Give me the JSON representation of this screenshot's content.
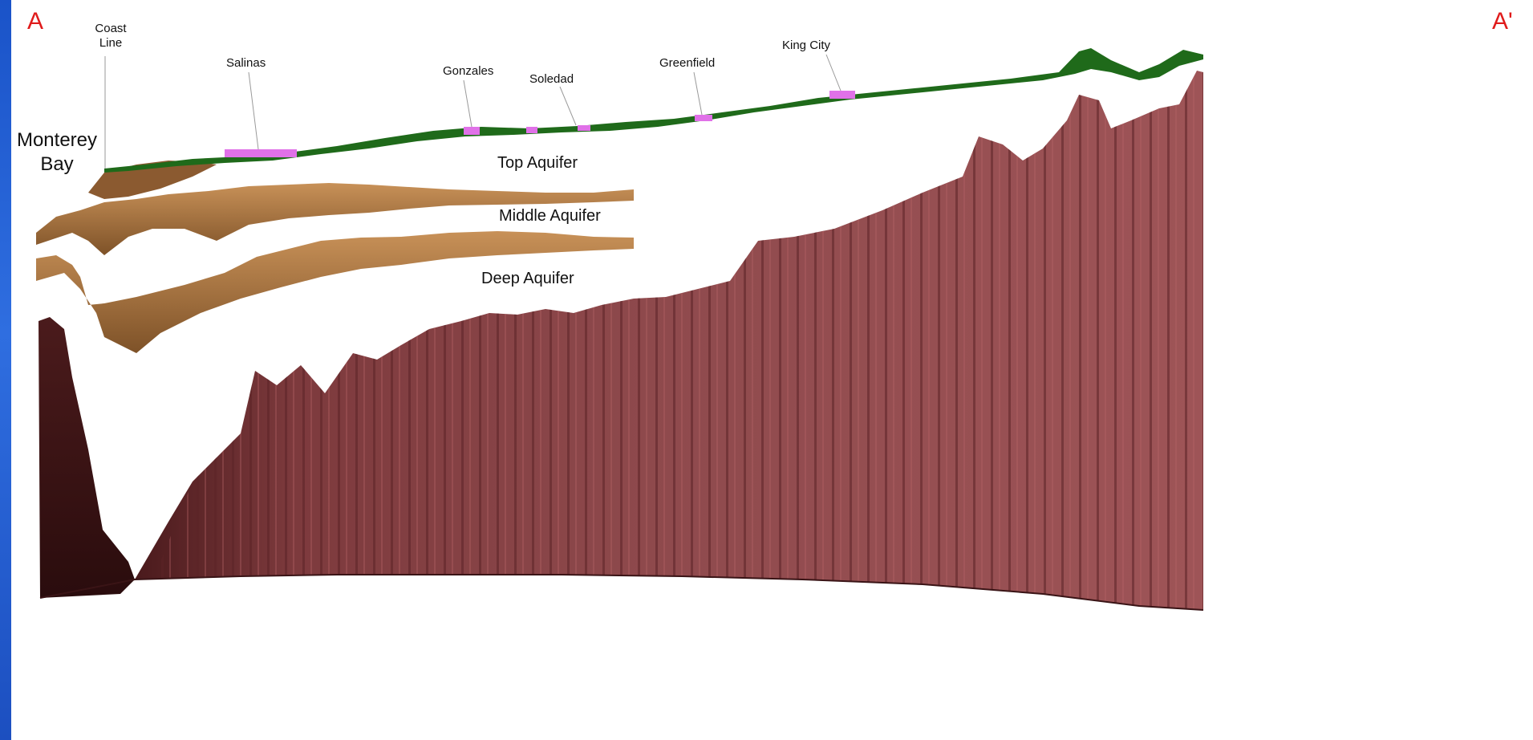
{
  "section": {
    "start_marker": "A",
    "end_marker": "A'"
  },
  "places": {
    "coast_line_line1": "Coast",
    "coast_line_line2": "Line",
    "monterey_bay_line1": "Monterey",
    "monterey_bay_line2": "Bay",
    "salinas": "Salinas",
    "gonzales": "Gonzales",
    "soledad": "Soledad",
    "greenfield": "Greenfield",
    "king_city": "King City"
  },
  "layers": {
    "top_aquifer": "Top Aquifer",
    "middle_aquifer": "Middle Aquifer",
    "deep_aquifer": "Deep Aquifer"
  },
  "colors": {
    "land_surface": "#1f6a1a",
    "town": "#e071e8",
    "aquifer": "#c48a4e",
    "aquifer_dark": "#7a5028",
    "bedrock": "#a45658",
    "bedrock_dark": "#6e2f33",
    "bedrock_deep": "#3a1416"
  }
}
